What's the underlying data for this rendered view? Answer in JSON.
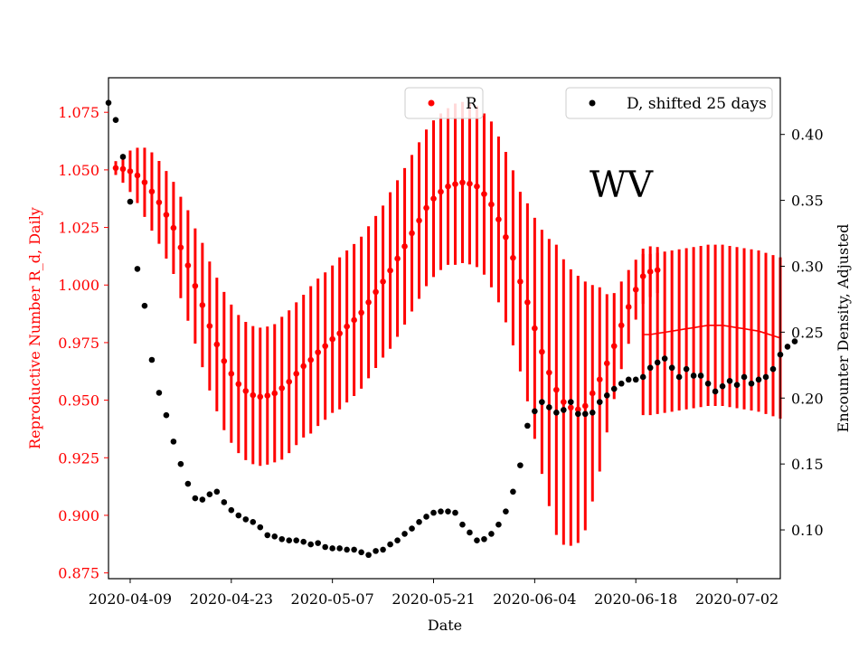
{
  "chart_data": {
    "type": "scatter",
    "xlabel": "Date",
    "ylabel_left": "Reproductive Number R_d, Daily",
    "ylabel_right": "Encounter Density, Adjusted",
    "annotation": "WV",
    "x_start": "2020-04-06",
    "x_end": "2020-07-08",
    "x_ticks": [
      "2020-04-09",
      "2020-04-23",
      "2020-05-07",
      "2020-05-21",
      "2020-06-04",
      "2020-06-18",
      "2020-07-02"
    ],
    "ylim_left": [
      0.8725,
      1.09
    ],
    "yticks_left": [
      0.875,
      0.9,
      0.925,
      0.95,
      0.975,
      1.0,
      1.025,
      1.05,
      1.075
    ],
    "ylim_right": [
      0.063,
      0.443
    ],
    "yticks_right": [
      0.1,
      0.15,
      0.2,
      0.25,
      0.3,
      0.35,
      0.4
    ],
    "colors": {
      "R": "#ff0000",
      "D": "#000000",
      "left_axis": "#ff0000",
      "right_axis": "#000000"
    },
    "legend": [
      {
        "label": "R",
        "placement": "top-center",
        "color": "#ff0000"
      },
      {
        "label": "D, shifted 25 days",
        "placement": "top-right",
        "color": "#000000"
      }
    ],
    "series": [
      {
        "name": "R",
        "axis": "left",
        "start": "2020-04-07",
        "step_days": 1,
        "values": [
          1.0508,
          1.0504,
          1.0494,
          1.0476,
          1.0446,
          1.0406,
          1.0359,
          1.0305,
          1.0248,
          1.0163,
          1.0085,
          0.9996,
          0.9913,
          0.9822,
          0.9742,
          0.967,
          0.9615,
          0.957,
          0.954,
          0.9522,
          0.9515,
          0.952,
          0.953,
          0.9552,
          0.958,
          0.9615,
          0.9648,
          0.9675,
          0.9708,
          0.9735,
          0.9765,
          0.979,
          0.982,
          0.9848,
          0.988,
          0.9925,
          0.997,
          1.0015,
          1.0063,
          1.0115,
          1.0168,
          1.0225,
          1.028,
          1.0335,
          1.0375,
          1.0405,
          1.0428,
          1.0438,
          1.0445,
          1.044,
          1.0428,
          1.0395,
          1.035,
          1.0285,
          1.0208,
          1.0118,
          1.0015,
          0.9925,
          0.9812,
          0.971,
          0.962,
          0.9545,
          0.9492,
          0.9468,
          0.946,
          0.9475,
          0.953,
          0.959,
          0.966,
          0.9735,
          0.9825,
          0.9905,
          0.998,
          1.0038,
          1.0058,
          1.0065
        ],
        "errors": [
          0.003,
          0.006,
          0.009,
          0.012,
          0.015,
          0.017,
          0.018,
          0.019,
          0.02,
          0.022,
          0.024,
          0.025,
          0.027,
          0.028,
          0.029,
          0.03,
          0.03,
          0.03,
          0.03,
          0.03,
          0.03,
          0.03,
          0.03,
          0.031,
          0.031,
          0.031,
          0.031,
          0.032,
          0.032,
          0.032,
          0.032,
          0.033,
          0.033,
          0.033,
          0.033,
          0.033,
          0.033,
          0.033,
          0.034,
          0.034,
          0.034,
          0.034,
          0.034,
          0.034,
          0.034,
          0.034,
          0.034,
          0.035,
          0.035,
          0.035,
          0.035,
          0.035,
          0.036,
          0.036,
          0.037,
          0.038,
          0.039,
          0.043,
          0.048,
          0.053,
          0.058,
          0.063,
          0.062,
          0.06,
          0.058,
          0.054,
          0.047,
          0.04,
          0.03,
          0.023,
          0.019,
          0.016,
          0.013,
          0.012,
          0.011,
          0.01
        ]
      },
      {
        "name": "R",
        "axis": "left",
        "style": "line",
        "start": "2020-06-19",
        "step_days": 1,
        "values": [
          0.9785,
          0.9785,
          0.979,
          0.9795,
          0.98,
          0.9805,
          0.981,
          0.9815,
          0.982,
          0.9825,
          0.9825,
          0.9825,
          0.982,
          0.9815,
          0.981,
          0.9805,
          0.98,
          0.979,
          0.978,
          0.977
        ],
        "errors": [
          0.035,
          0.035,
          0.035,
          0.035,
          0.035,
          0.035,
          0.035,
          0.035,
          0.035,
          0.035,
          0.035,
          0.035,
          0.035,
          0.035,
          0.035,
          0.035,
          0.035,
          0.035,
          0.035,
          0.035
        ]
      },
      {
        "name": "D, shifted 25 days",
        "axis": "right",
        "start": "2020-04-06",
        "step_days": 1,
        "values": [
          0.424,
          0.411,
          0.383,
          0.349,
          0.298,
          0.27,
          0.229,
          0.204,
          0.187,
          0.167,
          0.15,
          0.135,
          0.124,
          0.123,
          0.127,
          0.129,
          0.121,
          0.115,
          0.111,
          0.108,
          0.106,
          0.102,
          0.096,
          0.095,
          0.093,
          0.092,
          0.092,
          0.091,
          0.089,
          0.09,
          0.087,
          0.086,
          0.086,
          0.085,
          0.085,
          0.083,
          0.081,
          0.084,
          0.085,
          0.089,
          0.092,
          0.097,
          0.101,
          0.106,
          0.11,
          0.113,
          0.114,
          0.114,
          0.113,
          0.104,
          0.098,
          0.092,
          0.093,
          0.097,
          0.104,
          0.114,
          0.129,
          0.149,
          0.179,
          0.19,
          0.197,
          0.193,
          0.189,
          0.191,
          0.197,
          0.188,
          0.188,
          0.189,
          0.197,
          0.202,
          0.207,
          0.211,
          0.214,
          0.214,
          0.216,
          0.223,
          0.227,
          0.23,
          0.223,
          0.216,
          0.222,
          0.217,
          0.217,
          0.211,
          0.205,
          0.209,
          0.213,
          0.21,
          0.216,
          0.211,
          0.214,
          0.216,
          0.222,
          0.233,
          0.239,
          0.243
        ]
      }
    ]
  }
}
